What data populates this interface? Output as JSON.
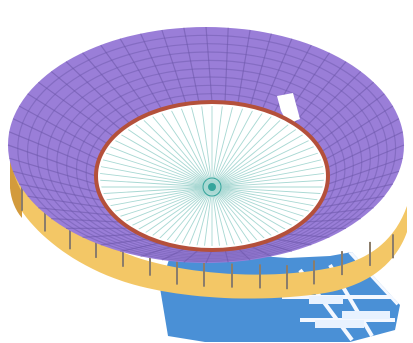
{
  "image": {
    "subject": "stadium-roof-structural-model",
    "colors": {
      "background": "#ffffff",
      "roof_top": "#9a7ed8",
      "roof_grid": "#6b56a8",
      "facade": "#f3c766",
      "facade_shadow": "#d39b3c",
      "inner_rim": "#b4503b",
      "field_lines": "#a9d8d3",
      "field_center": "#35a59c",
      "ground": "#4a90d6",
      "ground_lines": "#f4f8ff",
      "columns": "#8b7d6b"
    }
  }
}
